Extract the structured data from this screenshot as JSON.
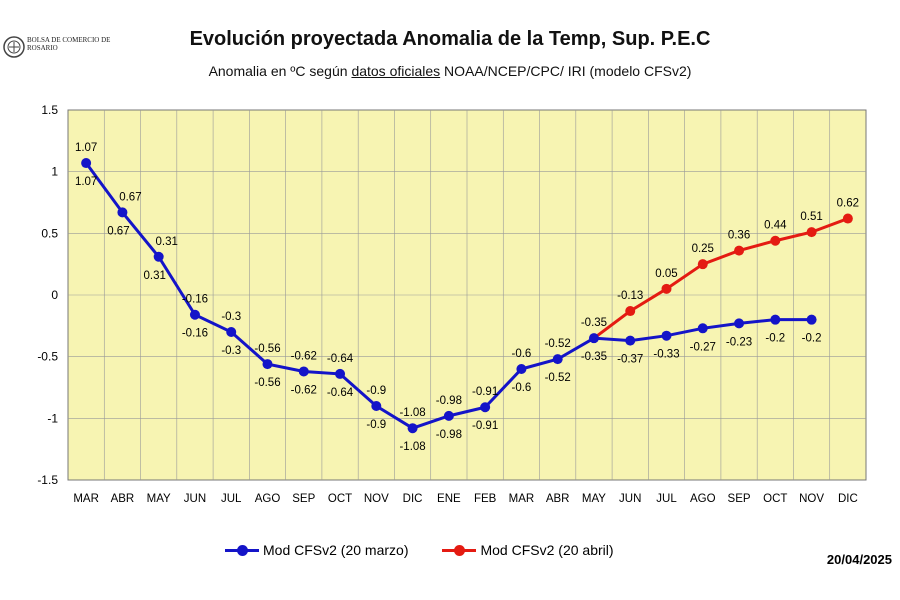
{
  "logo": {
    "text": "Bolsa de Comercio de Rosario"
  },
  "title": "Evolución proyectada Anomalia de la Temp, Sup.  P.E.C",
  "subtitle": {
    "before": "Anomalia en ºC según ",
    "underlined": "datos oficiales",
    "after": " NOAA/NCEP/CPC/ IRI (modelo CFSv2)"
  },
  "date": "20/04/2025",
  "colors": {
    "plot_bg": "#f7f4b2",
    "grid": "#999999",
    "series_march": "#1414c8",
    "series_april": "#e41b12"
  },
  "chart_data": {
    "type": "line",
    "title": "Evolución proyectada Anomalia de la Temp, Sup.  P.E.C",
    "xlabel": "",
    "ylabel": "",
    "ylim": [
      -1.5,
      1.5
    ],
    "yticks": [
      "1.5",
      "1",
      "0.5",
      "0",
      "-0.5",
      "-1",
      "-1.5"
    ],
    "grid": true,
    "legend": "bottom",
    "categories": [
      "MAR",
      "ABR",
      "MAY",
      "JUN",
      "JUL",
      "AGO",
      "SEP",
      "OCT",
      "NOV",
      "DIC",
      "ENE",
      "FEB",
      "MAR",
      "ABR",
      "MAY",
      "JUN",
      "JUL",
      "AGO",
      "SEP",
      "OCT",
      "NOV",
      "DIC"
    ],
    "series": [
      {
        "name": "Mod CFSv2 (20 marzo)",
        "color": "#1414c8",
        "values": [
          1.07,
          0.67,
          0.31,
          -0.16,
          -0.3,
          -0.56,
          -0.62,
          -0.64,
          -0.9,
          -1.08,
          -0.98,
          -0.91,
          -0.6,
          -0.52,
          -0.35,
          -0.37,
          -0.33,
          -0.27,
          -0.23,
          -0.2,
          -0.2,
          null
        ],
        "labels": [
          "1.07",
          "0.67",
          "0.31",
          "-0.16",
          "-0.3",
          "-0.56",
          "-0.62",
          "-0.64",
          "-0.9",
          "-1.08",
          "-0.98",
          "-0.91",
          "-0.6",
          "-0.52",
          "-0.35",
          "-0.37",
          "-0.33",
          "-0.27",
          "-0.23",
          "-0.2",
          "-0.2",
          null
        ]
      },
      {
        "name": "Mod CFSv2 (20 abril)",
        "color": "#e41b12",
        "values": [
          1.07,
          0.67,
          0.31,
          -0.16,
          -0.3,
          -0.56,
          -0.62,
          -0.64,
          -0.9,
          -1.08,
          -0.98,
          -0.91,
          -0.6,
          -0.52,
          -0.35,
          -0.13,
          0.05,
          0.25,
          0.36,
          0.44,
          0.51,
          0.62
        ],
        "labels": [
          "1.07",
          "0.67",
          "0.31",
          "-0.16",
          "-0.3",
          "-0.56",
          "-0.62",
          "-0.64",
          "-0.9",
          "-1.08",
          "-0.98",
          "-0.91",
          "-0.6",
          "-0.52",
          "-0.35",
          "-0.13",
          "0.05",
          "0.25",
          "0.36",
          "0.44",
          "0.51",
          "0.62"
        ]
      }
    ]
  }
}
